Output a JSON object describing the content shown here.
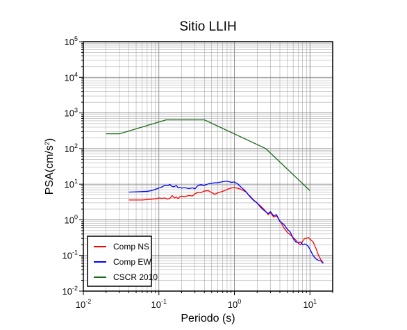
{
  "chart_data": {
    "type": "line",
    "title": "Sitio LLIH",
    "xlabel": "Periodo (s)",
    "ylabel_main": "PSA(cm/s",
    "ylabel_sup": "2",
    "ylabel_end": ")",
    "xscale": "log",
    "yscale": "log",
    "xlim": [
      0.01,
      20
    ],
    "ylim": [
      0.01,
      100000
    ],
    "grid": true,
    "legend_position": "bottom-left",
    "x_ticks": [
      {
        "base": "10",
        "exp": "-2",
        "value": 0.01
      },
      {
        "base": "10",
        "exp": "-1",
        "value": 0.1
      },
      {
        "base": "10",
        "exp": "0",
        "value": 1
      },
      {
        "base": "10",
        "exp": "1",
        "value": 10
      }
    ],
    "y_ticks": [
      {
        "base": "10",
        "exp": "-2",
        "value": 0.01
      },
      {
        "base": "10",
        "exp": "-1",
        "value": 0.1
      },
      {
        "base": "10",
        "exp": "0",
        "value": 1
      },
      {
        "base": "10",
        "exp": "1",
        "value": 10
      },
      {
        "base": "10",
        "exp": "2",
        "value": 100
      },
      {
        "base": "10",
        "exp": "3",
        "value": 1000
      },
      {
        "base": "10",
        "exp": "4",
        "value": 10000
      },
      {
        "base": "10",
        "exp": "5",
        "value": 100000
      }
    ],
    "series": [
      {
        "name": "Comp NS",
        "color": "#ff0000",
        "points": [
          [
            0.04,
            3.6
          ],
          [
            0.05,
            3.6
          ],
          [
            0.06,
            3.6
          ],
          [
            0.07,
            3.7
          ],
          [
            0.08,
            3.8
          ],
          [
            0.09,
            3.9
          ],
          [
            0.1,
            4.1
          ],
          [
            0.11,
            4.0
          ],
          [
            0.12,
            4.1
          ],
          [
            0.13,
            3.8
          ],
          [
            0.14,
            4.0
          ],
          [
            0.15,
            4.8
          ],
          [
            0.16,
            4.1
          ],
          [
            0.17,
            4.4
          ],
          [
            0.18,
            3.9
          ],
          [
            0.19,
            4.5
          ],
          [
            0.2,
            4.6
          ],
          [
            0.22,
            4.5
          ],
          [
            0.25,
            4.8
          ],
          [
            0.28,
            4.7
          ],
          [
            0.3,
            5.4
          ],
          [
            0.33,
            5.9
          ],
          [
            0.36,
            5.8
          ],
          [
            0.4,
            6.4
          ],
          [
            0.45,
            6.6
          ],
          [
            0.5,
            5.8
          ],
          [
            0.55,
            5.2
          ],
          [
            0.6,
            5.7
          ],
          [
            0.7,
            6.3
          ],
          [
            0.8,
            7.1
          ],
          [
            0.9,
            7.8
          ],
          [
            1.0,
            8.1
          ],
          [
            1.2,
            7.3
          ],
          [
            1.4,
            6.2
          ],
          [
            1.6,
            4.7
          ],
          [
            1.8,
            3.6
          ],
          [
            2.0,
            2.9
          ],
          [
            2.2,
            2.5
          ],
          [
            2.5,
            1.9
          ],
          [
            2.8,
            1.4
          ],
          [
            3.0,
            1.6
          ],
          [
            3.3,
            1.2
          ],
          [
            3.6,
            1.3
          ],
          [
            4.0,
            0.95
          ],
          [
            4.5,
            0.6
          ],
          [
            5.0,
            0.45
          ],
          [
            5.5,
            0.38
          ],
          [
            6.0,
            0.32
          ],
          [
            6.5,
            0.27
          ],
          [
            7.0,
            0.22
          ],
          [
            7.5,
            0.2
          ],
          [
            8.0,
            0.25
          ],
          [
            8.5,
            0.3
          ],
          [
            9.0,
            0.3
          ],
          [
            9.5,
            0.32
          ],
          [
            10.0,
            0.29
          ],
          [
            11.0,
            0.24
          ],
          [
            12.0,
            0.16
          ],
          [
            13.0,
            0.1
          ],
          [
            14.0,
            0.075
          ],
          [
            15.0,
            0.062
          ]
        ]
      },
      {
        "name": "Comp EW",
        "color": "#0000ff",
        "points": [
          [
            0.04,
            6.0
          ],
          [
            0.05,
            6.1
          ],
          [
            0.06,
            6.2
          ],
          [
            0.07,
            6.3
          ],
          [
            0.08,
            6.6
          ],
          [
            0.09,
            7.2
          ],
          [
            0.1,
            7.8
          ],
          [
            0.11,
            8.4
          ],
          [
            0.12,
            9.4
          ],
          [
            0.13,
            9.1
          ],
          [
            0.14,
            9.8
          ],
          [
            0.15,
            8.6
          ],
          [
            0.16,
            8.5
          ],
          [
            0.17,
            9.3
          ],
          [
            0.18,
            7.9
          ],
          [
            0.19,
            8.2
          ],
          [
            0.2,
            7.8
          ],
          [
            0.22,
            8.0
          ],
          [
            0.25,
            7.5
          ],
          [
            0.28,
            7.9
          ],
          [
            0.3,
            7.4
          ],
          [
            0.33,
            9.3
          ],
          [
            0.36,
            9.6
          ],
          [
            0.4,
            9.3
          ],
          [
            0.45,
            10.2
          ],
          [
            0.5,
            10.6
          ],
          [
            0.55,
            11.0
          ],
          [
            0.6,
            11.0
          ],
          [
            0.7,
            11.8
          ],
          [
            0.8,
            12.2
          ],
          [
            0.9,
            11.3
          ],
          [
            1.0,
            11.5
          ],
          [
            1.1,
            10.3
          ],
          [
            1.2,
            8.6
          ],
          [
            1.4,
            6.4
          ],
          [
            1.6,
            4.5
          ],
          [
            1.8,
            3.5
          ],
          [
            2.0,
            3.0
          ],
          [
            2.2,
            2.3
          ],
          [
            2.5,
            1.8
          ],
          [
            2.8,
            1.5
          ],
          [
            3.0,
            1.7
          ],
          [
            3.3,
            1.3
          ],
          [
            3.6,
            1.4
          ],
          [
            4.0,
            0.9
          ],
          [
            4.5,
            0.75
          ],
          [
            5.0,
            0.55
          ],
          [
            5.5,
            0.45
          ],
          [
            6.0,
            0.3
          ],
          [
            6.5,
            0.24
          ],
          [
            7.0,
            0.23
          ],
          [
            7.5,
            0.24
          ],
          [
            8.0,
            0.2
          ],
          [
            8.5,
            0.21
          ],
          [
            9.0,
            0.2
          ],
          [
            9.5,
            0.18
          ],
          [
            10.0,
            0.15
          ],
          [
            11.0,
            0.1
          ],
          [
            12.0,
            0.08
          ],
          [
            13.0,
            0.073
          ],
          [
            14.0,
            0.07
          ],
          [
            15.0,
            0.06
          ]
        ]
      },
      {
        "name": "CSCR 2010",
        "color": "#1a6b1a",
        "points": [
          [
            0.02,
            260
          ],
          [
            0.03,
            260
          ],
          [
            0.125,
            640
          ],
          [
            0.4,
            640
          ],
          [
            2.6,
            100
          ],
          [
            10.0,
            6.6
          ]
        ]
      }
    ]
  }
}
